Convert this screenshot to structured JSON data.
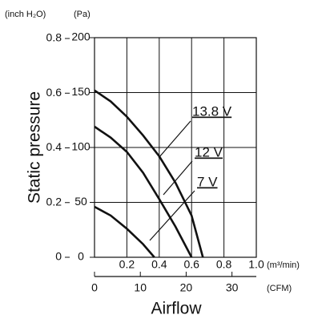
{
  "chart_data": {
    "type": "line",
    "y_label": "Static pressure",
    "x_label": "Airflow",
    "y_unit": "(Pa)",
    "y2_unit": "(inch H₂O)",
    "x_unit": "(m³/min)",
    "x2_unit": "(CFM)",
    "xlim": [
      0,
      1
    ],
    "xticks": [
      0.2,
      0.4,
      0.6,
      0.8,
      {
        "value": 1,
        "label": "1.0"
      }
    ],
    "x2lim": [
      0,
      35.31
    ],
    "x2ticks": [
      0,
      10,
      20,
      30
    ],
    "ylim": [
      0,
      200
    ],
    "yticks": [
      0,
      50,
      100,
      150,
      200
    ],
    "y2lim": [
      0,
      0.803
    ],
    "y2ticks": [
      0,
      0.2,
      0.4,
      0.6,
      0.8
    ],
    "grid": true,
    "series": [
      {
        "name": "13.8 V",
        "color": "#111111",
        "x": [
          0,
          0.1,
          0.2,
          0.3,
          0.4,
          0.5,
          0.6,
          0.67
        ],
        "values": [
          152,
          142,
          128,
          111,
          92,
          68,
          38,
          0
        ]
      },
      {
        "name": "12 V",
        "color": "#111111",
        "x": [
          0,
          0.1,
          0.2,
          0.3,
          0.4,
          0.5,
          0.6
        ],
        "values": [
          119,
          109,
          96,
          77,
          53,
          28,
          0
        ]
      },
      {
        "name": "7 V",
        "color": "#111111",
        "x": [
          0,
          0.1,
          0.2,
          0.3,
          0.37
        ],
        "values": [
          46,
          38,
          26,
          12,
          0
        ]
      }
    ]
  }
}
